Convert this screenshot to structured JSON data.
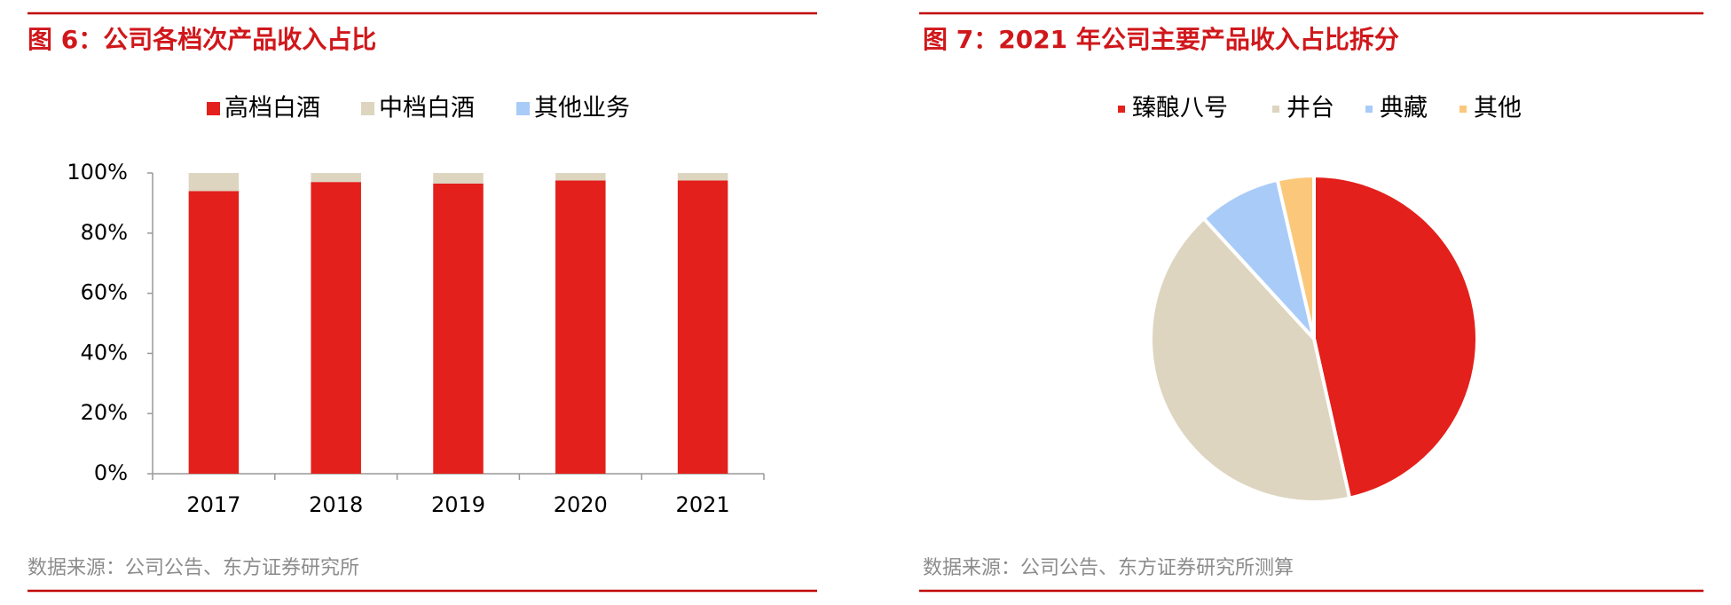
{
  "chart_data": [
    {
      "type": "bar",
      "stacked": true,
      "title": "图 6：公司各档次产品收入占比",
      "categories": [
        "2017",
        "2018",
        "2019",
        "2020",
        "2021"
      ],
      "series": [
        {
          "name": "高档白酒",
          "color": "#e3201b",
          "values": [
            94,
            97,
            96.5,
            97.5,
            97.5
          ]
        },
        {
          "name": "中档白酒",
          "color": "#ddd5c0",
          "values": [
            6,
            3,
            3.5,
            2.5,
            2.5
          ]
        },
        {
          "name": "其他业务",
          "color": "#a9cbf8",
          "values": [
            0,
            0,
            0,
            0,
            0
          ]
        }
      ],
      "ylim": [
        0,
        100
      ],
      "yticks": [
        {
          "value": 0,
          "label": "0%"
        },
        {
          "value": 20,
          "label": "20%"
        },
        {
          "value": 40,
          "label": "40%"
        },
        {
          "value": 60,
          "label": "60%"
        },
        {
          "value": 80,
          "label": "80%"
        },
        {
          "value": 100,
          "label": "100%"
        }
      ],
      "source": "数据来源：公司公告、东方证券研究所"
    },
    {
      "type": "pie",
      "title": "图 7：2021 年公司主要产品收入占比拆分",
      "categories": [
        "臻酿八号",
        "井台",
        "典藏",
        "其他"
      ],
      "values": [
        46.5,
        41.7,
        8.2,
        3.6
      ],
      "colors": [
        "#e3201b",
        "#ddd5c0",
        "#a9cbf8",
        "#fbc77a"
      ],
      "source": "数据来源：公司公告、东方证券研究所测算"
    }
  ]
}
